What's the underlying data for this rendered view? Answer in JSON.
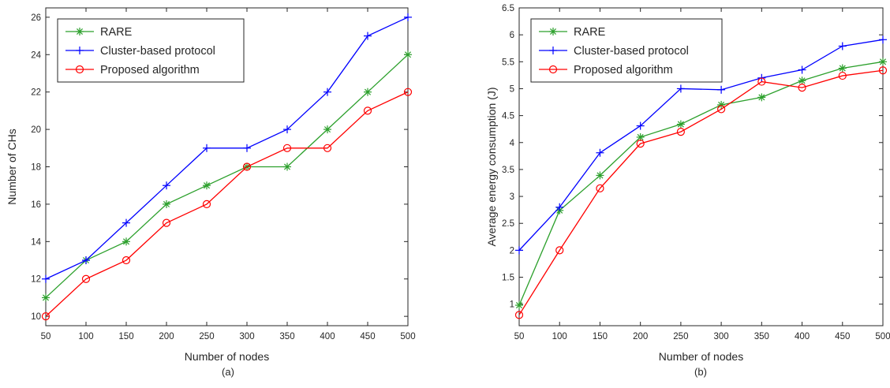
{
  "chart_data": [
    {
      "type": "line",
      "caption": "(a)",
      "xlabel": "Number of nodes",
      "ylabel": "Number of CHs",
      "x": [
        50,
        100,
        150,
        200,
        250,
        300,
        350,
        400,
        450,
        500
      ],
      "xticks": [
        "50",
        "100",
        "150",
        "200",
        "250",
        "300",
        "350",
        "400",
        "450",
        "500"
      ],
      "xlim": [
        50,
        500
      ],
      "ylim": [
        9.5,
        26.5
      ],
      "yticks": [
        "10",
        "12",
        "14",
        "16",
        "18",
        "20",
        "22",
        "24",
        "26"
      ],
      "ytick_values": [
        10,
        12,
        14,
        16,
        18,
        20,
        22,
        24,
        26
      ],
      "grid": false,
      "legend_position": "top-left",
      "series": [
        {
          "name": "RARE",
          "color": "#2ca02c",
          "marker": "asterisk",
          "values": [
            11,
            13,
            14,
            16,
            17,
            18,
            18,
            20,
            22,
            24
          ]
        },
        {
          "name": "Cluster-based protocol",
          "color": "#0000ff",
          "marker": "plus",
          "values": [
            12,
            13,
            15,
            17,
            19,
            19,
            20,
            22,
            25,
            26
          ]
        },
        {
          "name": "Proposed algorithm",
          "color": "#ff0000",
          "marker": "circle",
          "values": [
            10,
            12,
            13,
            15,
            16,
            18,
            19,
            19,
            21,
            22
          ]
        }
      ]
    },
    {
      "type": "line",
      "caption": "(b)",
      "xlabel": "Number of nodes",
      "ylabel": "Average energy consumption (J)",
      "x": [
        50,
        100,
        150,
        200,
        250,
        300,
        350,
        400,
        450,
        500
      ],
      "xticks": [
        "50",
        "100",
        "150",
        "200",
        "250",
        "300",
        "350",
        "400",
        "450",
        "500"
      ],
      "xlim": [
        50,
        500
      ],
      "ylim": [
        0.6,
        6.5
      ],
      "yticks": [
        "1",
        "1.5",
        "2",
        "2.5",
        "3",
        "3.5",
        "4",
        "4.5",
        "5",
        "5.5",
        "6",
        "6.5"
      ],
      "ytick_values": [
        1,
        1.5,
        2,
        2.5,
        3,
        3.5,
        4,
        4.5,
        5,
        5.5,
        6,
        6.5
      ],
      "grid": false,
      "legend_position": "top-left",
      "series": [
        {
          "name": "RARE",
          "color": "#2ca02c",
          "marker": "asterisk",
          "values": [
            0.98,
            2.74,
            3.39,
            4.1,
            4.34,
            4.7,
            4.84,
            5.15,
            5.38,
            5.5
          ]
        },
        {
          "name": "Cluster-based protocol",
          "color": "#0000ff",
          "marker": "plus",
          "values": [
            2.0,
            2.8,
            3.81,
            4.31,
            5.0,
            4.98,
            5.2,
            5.35,
            5.79,
            5.91
          ]
        },
        {
          "name": "Proposed algorithm",
          "color": "#ff0000",
          "marker": "circle",
          "values": [
            0.8,
            2.0,
            3.15,
            3.98,
            4.2,
            4.62,
            5.13,
            5.02,
            5.24,
            5.34
          ]
        }
      ]
    }
  ]
}
